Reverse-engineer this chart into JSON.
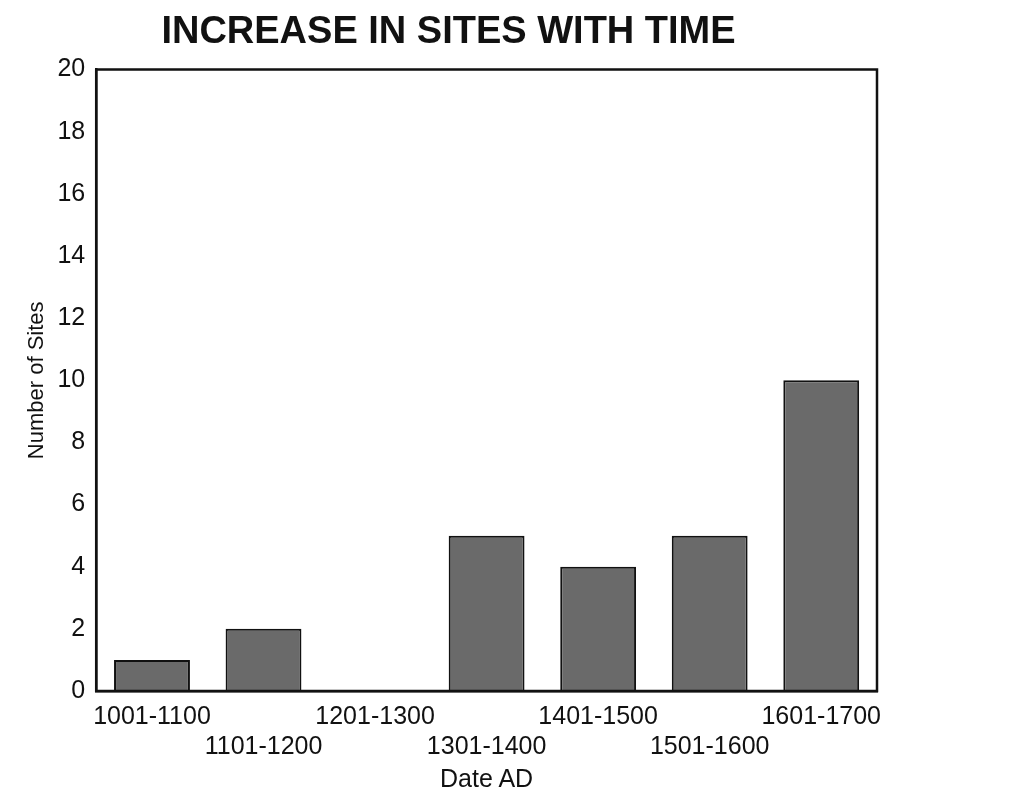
{
  "chart_data": {
    "type": "bar",
    "title": "INCREASE IN SITES WITH TIME",
    "xlabel": "Date AD",
    "ylabel": "Number of Sites",
    "categories": [
      "1001-1100",
      "1101-1200",
      "1201-1300",
      "1301-1400",
      "1401-1500",
      "1501-1600",
      "1601-1700"
    ],
    "values": [
      1,
      2,
      0,
      5,
      4,
      5,
      10
    ],
    "color": "#6a6a6a",
    "ylim": [
      0,
      20
    ],
    "yticks": [
      0,
      2,
      4,
      6,
      8,
      10,
      12,
      14,
      16,
      18,
      20
    ],
    "grid": false,
    "legend": false
  }
}
